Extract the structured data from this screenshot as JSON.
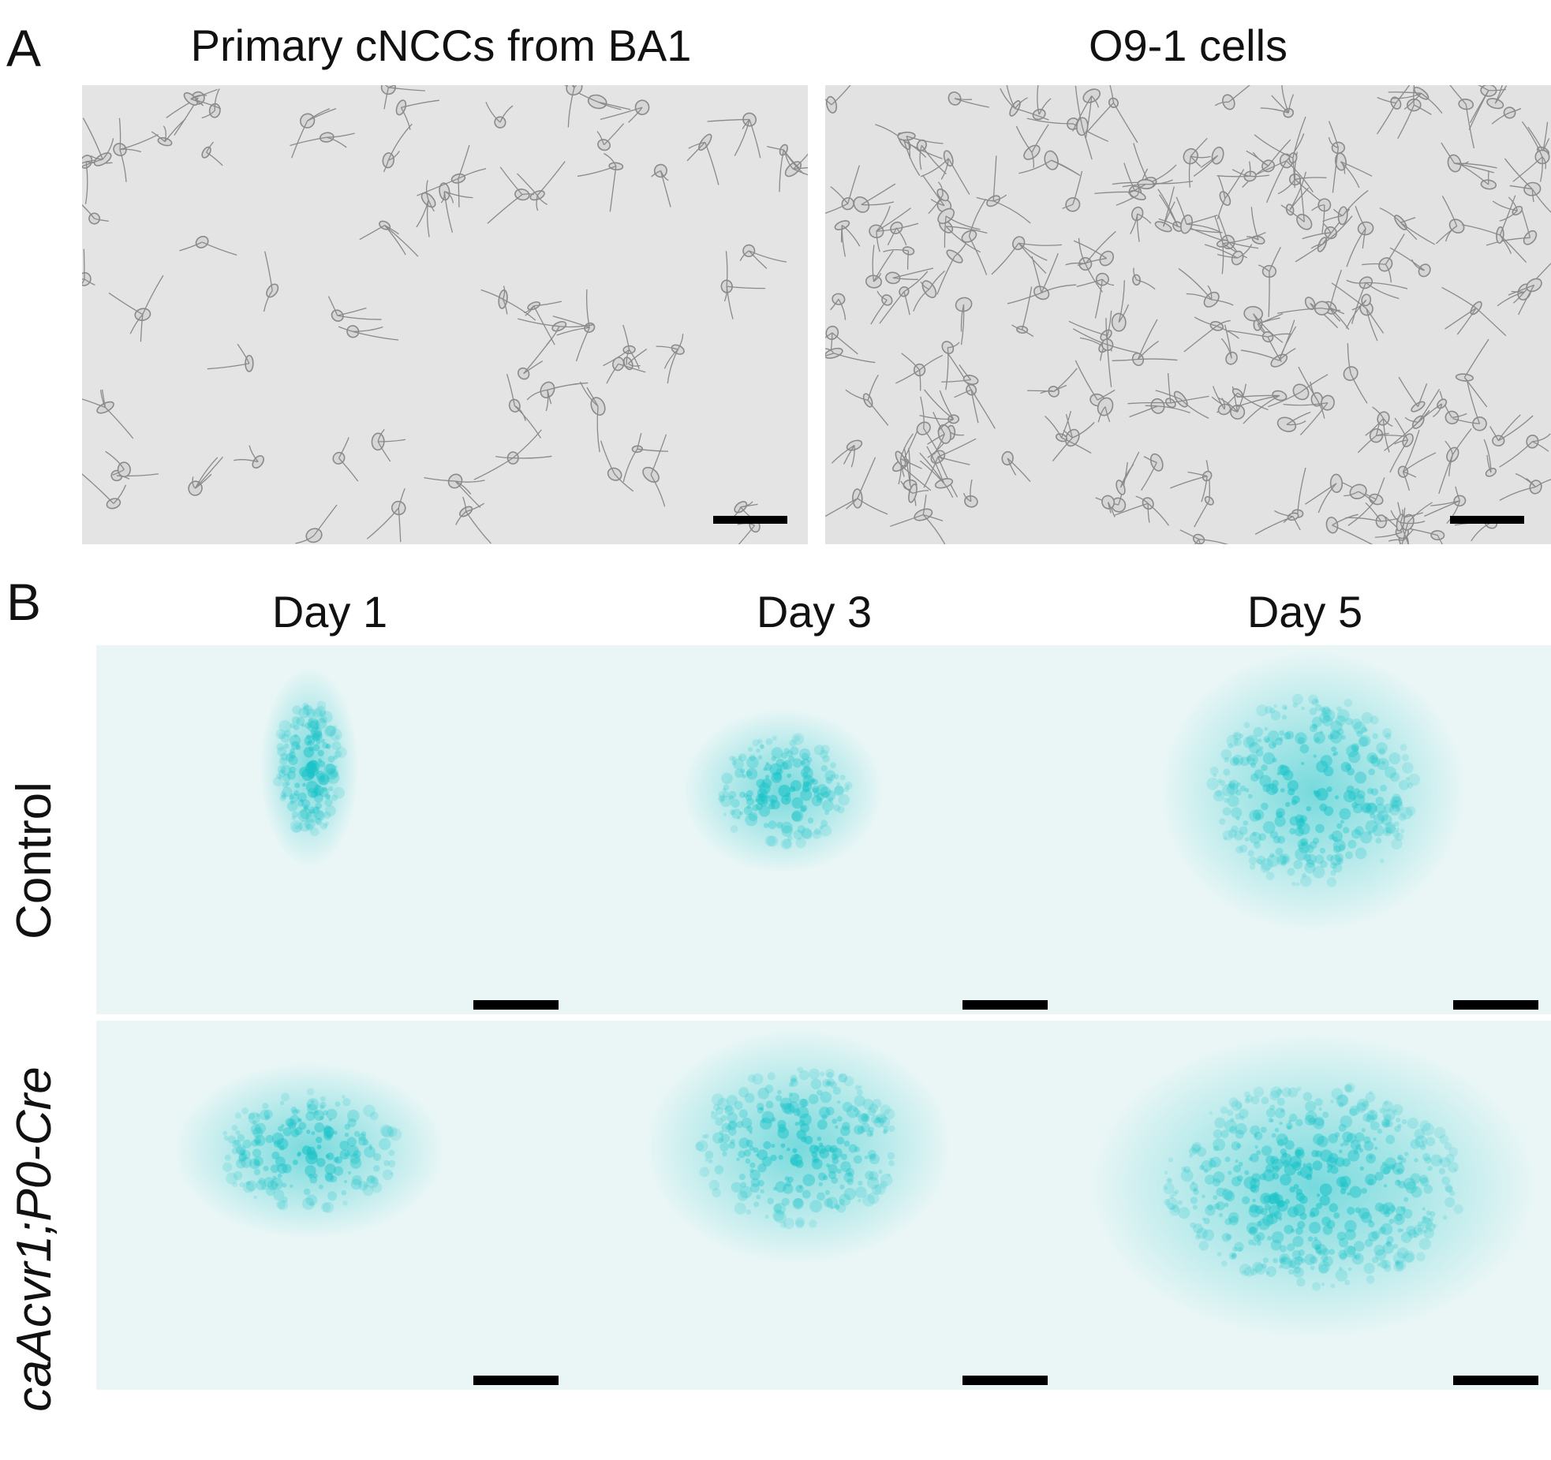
{
  "panel_a": {
    "letter": "A",
    "left_title": "Primary cNCCs from BA1",
    "right_title": "O9-1 cells"
  },
  "panel_b": {
    "letter": "B",
    "column_titles": [
      "Day 1",
      "Day 3",
      "Day 5"
    ],
    "row_labels": [
      "Control",
      "caAcvr1;P0-Cre"
    ],
    "stain_color": "#19c3c8",
    "background_color": "#eaf6f6"
  },
  "colors": {
    "phase_background": "#e4e4e4",
    "cell_outline": "#8a8a8a",
    "scale_bar": "#000000"
  }
}
